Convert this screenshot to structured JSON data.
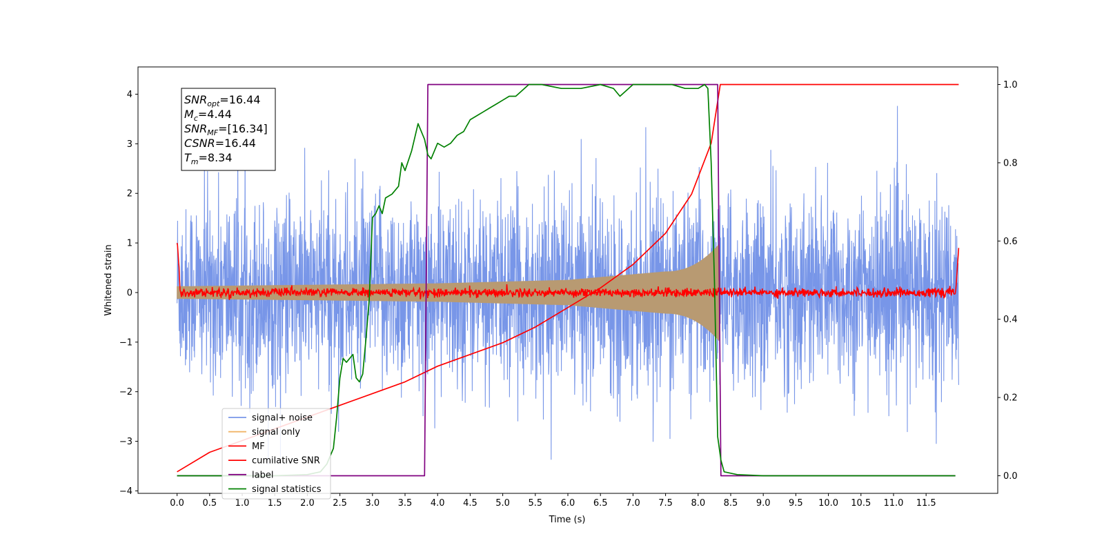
{
  "chart_data": {
    "type": "line",
    "xlabel": "Time (s)",
    "ylabel": "Whitened strain",
    "xlim": [
      -0.6,
      12.6
    ],
    "ylim": [
      -4.05,
      4.55
    ],
    "y2lim": [
      -0.045,
      1.045
    ],
    "xticks": [
      "0.0",
      "0.5",
      "1.0",
      "1.5",
      "2.0",
      "2.5",
      "3.0",
      "3.5",
      "4.0",
      "4.5",
      "5.0",
      "5.5",
      "6.0",
      "6.5",
      "7.0",
      "7.5",
      "8.0",
      "8.5",
      "9.0",
      "9.5",
      "10.0",
      "10.5",
      "11.0",
      "11.5"
    ],
    "yticks": [
      "4",
      "3",
      "2",
      "1",
      "0",
      "−1",
      "−2",
      "−3",
      "−4"
    ],
    "y2ticks": [
      "1.0",
      "0.8",
      "0.6",
      "0.4",
      "0.2",
      "0.0"
    ],
    "info_box": {
      "lines": [
        {
          "sym": "SNR",
          "sub": "opt",
          "val": "=16.44"
        },
        {
          "sym": "M",
          "sub": "c",
          "val": "=4.44"
        },
        {
          "sym": "SNR",
          "sub": "MF",
          "val": "=[16.34]"
        },
        {
          "sym": "CSNR",
          "sub": "",
          "val": "=16.44"
        },
        {
          "sym": "T",
          "sub": "m",
          "val": "=8.34"
        }
      ]
    },
    "legend": [
      {
        "label": "signal+ noise",
        "color": "#7896e8"
      },
      {
        "label": "signal only",
        "color": "#f0b467"
      },
      {
        "label": "MF",
        "color": "#ff0000"
      },
      {
        "label": "cumilative SNR",
        "color": "#ff0000"
      },
      {
        "label": "label",
        "color": "#800080"
      },
      {
        "label": "signal statistics",
        "color": "#008000"
      }
    ],
    "series": [
      {
        "name": "signal+ noise",
        "axis": "left",
        "color": "#7896e8",
        "x_range": [
          0,
          12.0
        ],
        "typical_amplitude": 1.6,
        "max": 4.2,
        "min": -3.7
      },
      {
        "name": "signal only",
        "axis": "left",
        "color": "#b89a72",
        "chirp_end": 8.34,
        "amplitude_at": [
          [
            0,
            0.12
          ],
          [
            4,
            0.18
          ],
          [
            6,
            0.25
          ],
          [
            7.5,
            0.42
          ],
          [
            8.34,
            1.0
          ]
        ]
      },
      {
        "name": "MF",
        "axis": "left",
        "color": "#ff0000",
        "baseline": 0.0,
        "noise_amp": 0.08,
        "edge_start": 1.0,
        "edge_end": 0.9
      },
      {
        "name": "cumilative SNR",
        "axis": "right",
        "color": "#ff0000",
        "points": [
          [
            0,
            0.01
          ],
          [
            0.5,
            0.06
          ],
          [
            1.0,
            0.09
          ],
          [
            1.5,
            0.12
          ],
          [
            2.0,
            0.15
          ],
          [
            2.5,
            0.18
          ],
          [
            3.0,
            0.21
          ],
          [
            3.5,
            0.24
          ],
          [
            4.0,
            0.28
          ],
          [
            4.5,
            0.31
          ],
          [
            5.0,
            0.34
          ],
          [
            5.5,
            0.38
          ],
          [
            6.0,
            0.43
          ],
          [
            6.5,
            0.48
          ],
          [
            7.0,
            0.54
          ],
          [
            7.5,
            0.62
          ],
          [
            7.9,
            0.72
          ],
          [
            8.2,
            0.85
          ],
          [
            8.34,
            1.0
          ],
          [
            12.0,
            1.0
          ]
        ]
      },
      {
        "name": "label",
        "axis": "right",
        "color": "#800080",
        "points": [
          [
            0,
            0.0
          ],
          [
            3.8,
            0.0
          ],
          [
            3.85,
            1.0
          ],
          [
            8.3,
            1.0
          ],
          [
            8.35,
            0.0
          ],
          [
            11.95,
            0.0
          ]
        ]
      },
      {
        "name": "signal statistics",
        "axis": "right",
        "color": "#008000",
        "points": [
          [
            0,
            0.0
          ],
          [
            1.5,
            0.0
          ],
          [
            2.0,
            0.003
          ],
          [
            2.2,
            0.01
          ],
          [
            2.3,
            0.03
          ],
          [
            2.4,
            0.07
          ],
          [
            2.45,
            0.15
          ],
          [
            2.5,
            0.25
          ],
          [
            2.55,
            0.3
          ],
          [
            2.6,
            0.29
          ],
          [
            2.65,
            0.3
          ],
          [
            2.7,
            0.31
          ],
          [
            2.75,
            0.25
          ],
          [
            2.8,
            0.24
          ],
          [
            2.85,
            0.26
          ],
          [
            2.9,
            0.35
          ],
          [
            2.95,
            0.45
          ],
          [
            3.0,
            0.66
          ],
          [
            3.05,
            0.67
          ],
          [
            3.1,
            0.69
          ],
          [
            3.15,
            0.67
          ],
          [
            3.2,
            0.71
          ],
          [
            3.3,
            0.72
          ],
          [
            3.4,
            0.74
          ],
          [
            3.45,
            0.8
          ],
          [
            3.5,
            0.78
          ],
          [
            3.6,
            0.83
          ],
          [
            3.7,
            0.9
          ],
          [
            3.8,
            0.86
          ],
          [
            3.85,
            0.82
          ],
          [
            3.9,
            0.81
          ],
          [
            4.0,
            0.85
          ],
          [
            4.1,
            0.84
          ],
          [
            4.2,
            0.85
          ],
          [
            4.3,
            0.87
          ],
          [
            4.4,
            0.88
          ],
          [
            4.5,
            0.91
          ],
          [
            4.6,
            0.92
          ],
          [
            4.7,
            0.93
          ],
          [
            4.8,
            0.94
          ],
          [
            4.9,
            0.95
          ],
          [
            5.0,
            0.96
          ],
          [
            5.1,
            0.97
          ],
          [
            5.2,
            0.97
          ],
          [
            5.4,
            1.0
          ],
          [
            5.6,
            1.0
          ],
          [
            5.9,
            0.99
          ],
          [
            6.2,
            0.99
          ],
          [
            6.5,
            1.0
          ],
          [
            6.7,
            0.99
          ],
          [
            6.8,
            0.97
          ],
          [
            7.0,
            1.0
          ],
          [
            7.3,
            1.0
          ],
          [
            7.6,
            1.0
          ],
          [
            7.8,
            0.99
          ],
          [
            8.0,
            0.99
          ],
          [
            8.1,
            1.0
          ],
          [
            8.15,
            0.99
          ],
          [
            8.2,
            0.8
          ],
          [
            8.25,
            0.5
          ],
          [
            8.3,
            0.1
          ],
          [
            8.35,
            0.04
          ],
          [
            8.4,
            0.01
          ],
          [
            8.6,
            0.003
          ],
          [
            9.0,
            0.0
          ],
          [
            11.95,
            0.0
          ]
        ]
      }
    ]
  }
}
